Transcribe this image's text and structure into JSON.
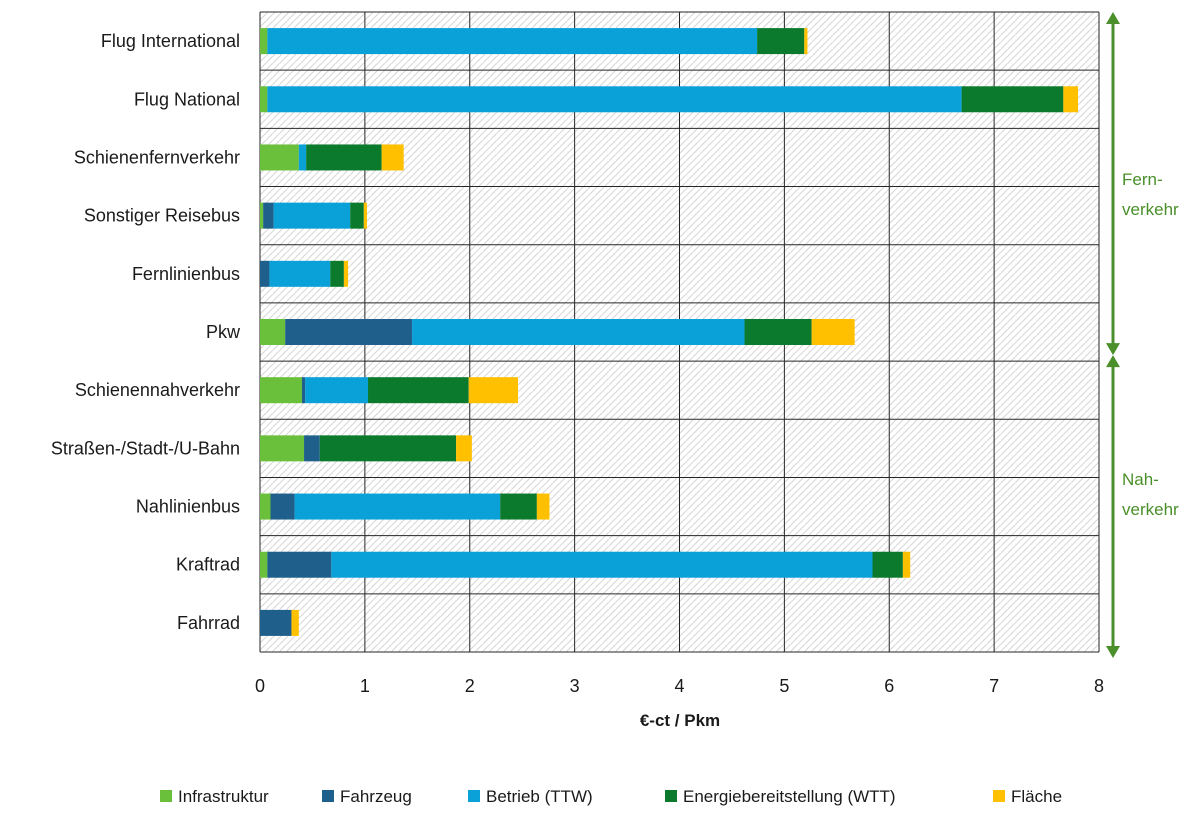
{
  "chart_data": {
    "type": "bar",
    "orientation": "horizontal",
    "stacked": true,
    "categories": [
      "Flug International",
      "Flug National",
      "Schienenfernverkehr",
      "Sonstiger Reisebus",
      "Fernlinienbus",
      "Pkw",
      "Schienennahverkehr",
      "Straßen-/Stadt-/U-Bahn",
      "Nahlinienbus",
      "Kraftrad",
      "Fahrrad"
    ],
    "series": [
      {
        "name": "Infrastruktur",
        "color": "#6abf3b",
        "values": [
          0.07,
          0.07,
          0.37,
          0.03,
          0.0,
          0.24,
          0.4,
          0.42,
          0.1,
          0.07,
          0.0
        ]
      },
      {
        "name": "Fahrzeug",
        "color": "#1f5f8b",
        "values": [
          0.0,
          0.0,
          0.0,
          0.1,
          0.09,
          1.21,
          0.03,
          0.15,
          0.23,
          0.61,
          0.3
        ]
      },
      {
        "name": "Betrieb (TTW)",
        "color": "#0aa0d8",
        "values": [
          4.67,
          6.62,
          0.07,
          0.73,
          0.58,
          3.17,
          0.6,
          0.0,
          1.96,
          5.16,
          0.0
        ]
      },
      {
        "name": "Energiebereitstellung (WTT)",
        "color": "#0b7a2c",
        "values": [
          0.45,
          0.97,
          0.72,
          0.13,
          0.13,
          0.64,
          0.96,
          1.3,
          0.35,
          0.29,
          0.0
        ]
      },
      {
        "name": "Fläche",
        "color": "#ffc000",
        "values": [
          0.03,
          0.14,
          0.21,
          0.03,
          0.04,
          0.41,
          0.47,
          0.15,
          0.12,
          0.07,
          0.07
        ]
      }
    ],
    "xlabel": "€-ct / Pkm",
    "xlim": [
      0,
      8
    ],
    "xticks": [
      "0",
      "1",
      "2",
      "3",
      "4",
      "5",
      "6",
      "7",
      "8"
    ],
    "grid": true,
    "legend_position": "bottom",
    "groups": [
      {
        "label_lines": [
          "Fern-",
          "verkehr"
        ],
        "from": 0,
        "to": 5
      },
      {
        "label_lines": [
          "Nah-",
          "verkehr"
        ],
        "from": 6,
        "to": 10
      }
    ],
    "group_color": "#4a8f2a"
  }
}
